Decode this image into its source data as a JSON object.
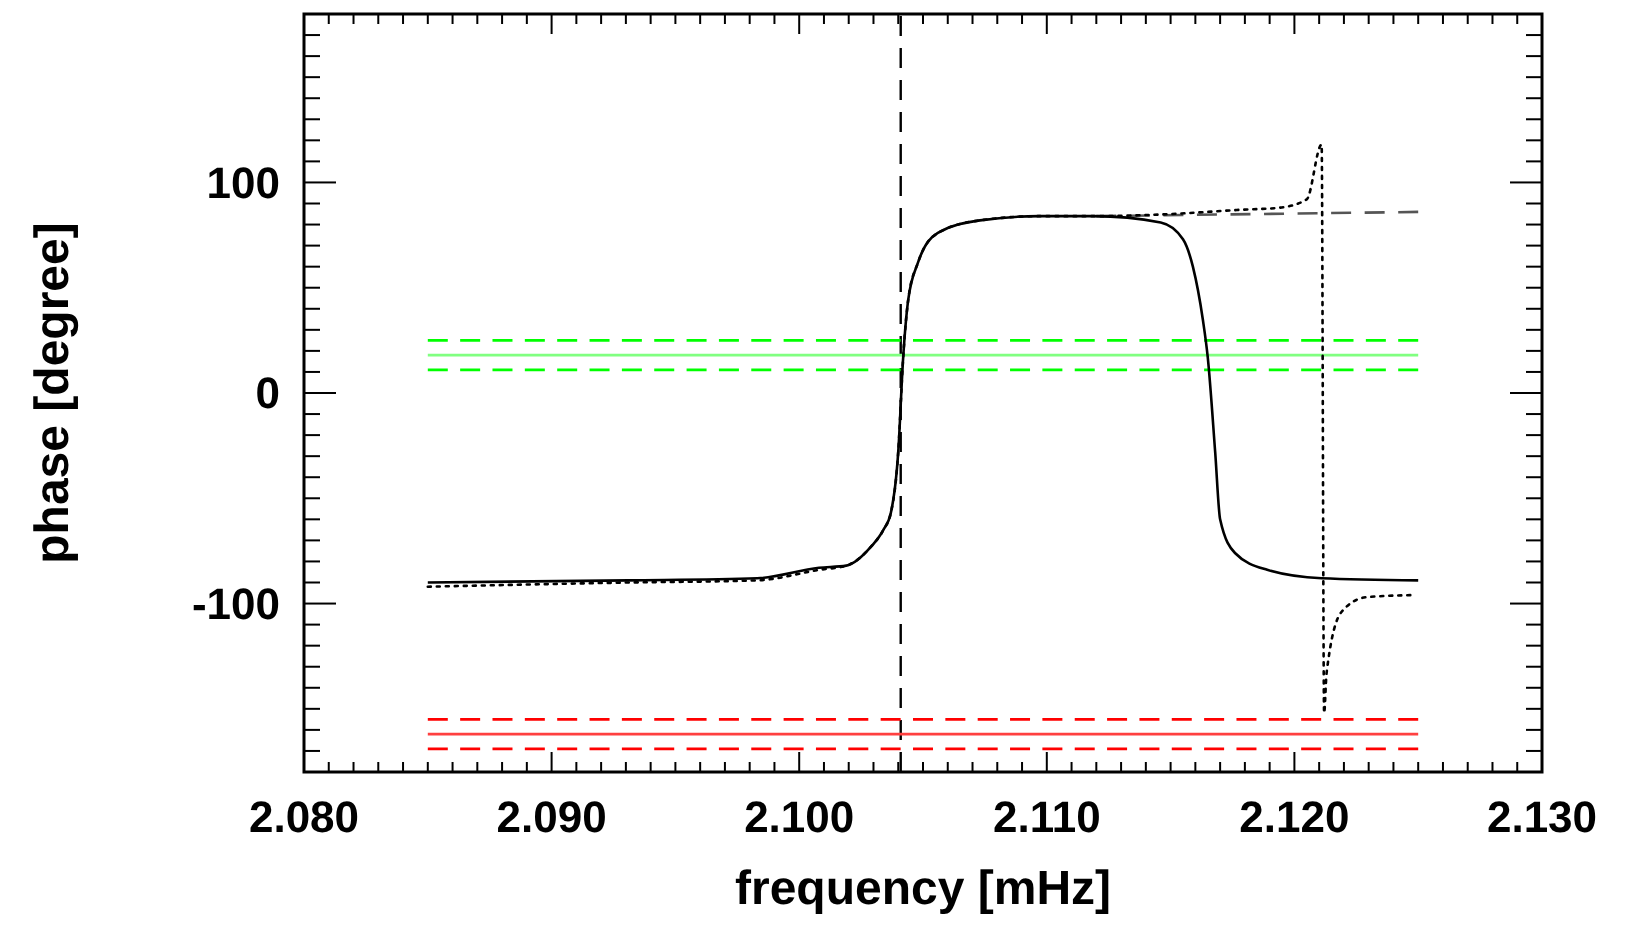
{
  "chart_data": {
    "type": "line",
    "xlabel": "frequency [mHz]",
    "ylabel": "phase [degree]",
    "xlim": [
      2.08,
      2.13
    ],
    "ylim": [
      -180,
      180
    ],
    "xticks": [
      {
        "value": 2.08,
        "label": "2.080"
      },
      {
        "value": 2.081,
        "label": null
      },
      {
        "value": 2.082,
        "label": null
      },
      {
        "value": 2.083,
        "label": null
      },
      {
        "value": 2.084,
        "label": null
      },
      {
        "value": 2.085,
        "label": null
      },
      {
        "value": 2.086,
        "label": null
      },
      {
        "value": 2.087,
        "label": null
      },
      {
        "value": 2.088,
        "label": null
      },
      {
        "value": 2.089,
        "label": null
      },
      {
        "value": 2.09,
        "label": "2.090"
      },
      {
        "value": 2.091,
        "label": null
      },
      {
        "value": 2.092,
        "label": null
      },
      {
        "value": 2.093,
        "label": null
      },
      {
        "value": 2.094,
        "label": null
      },
      {
        "value": 2.095,
        "label": null
      },
      {
        "value": 2.096,
        "label": null
      },
      {
        "value": 2.097,
        "label": null
      },
      {
        "value": 2.098,
        "label": null
      },
      {
        "value": 2.099,
        "label": null
      },
      {
        "value": 2.1,
        "label": "2.100"
      },
      {
        "value": 2.101,
        "label": null
      },
      {
        "value": 2.102,
        "label": null
      },
      {
        "value": 2.103,
        "label": null
      },
      {
        "value": 2.104,
        "label": null
      },
      {
        "value": 2.105,
        "label": null
      },
      {
        "value": 2.106,
        "label": null
      },
      {
        "value": 2.107,
        "label": null
      },
      {
        "value": 2.108,
        "label": null
      },
      {
        "value": 2.109,
        "label": null
      },
      {
        "value": 2.11,
        "label": "2.110"
      },
      {
        "value": 2.111,
        "label": null
      },
      {
        "value": 2.112,
        "label": null
      },
      {
        "value": 2.113,
        "label": null
      },
      {
        "value": 2.114,
        "label": null
      },
      {
        "value": 2.115,
        "label": null
      },
      {
        "value": 2.116,
        "label": null
      },
      {
        "value": 2.117,
        "label": null
      },
      {
        "value": 2.118,
        "label": null
      },
      {
        "value": 2.119,
        "label": null
      },
      {
        "value": 2.12,
        "label": "2.120"
      },
      {
        "value": 2.121,
        "label": null
      },
      {
        "value": 2.122,
        "label": null
      },
      {
        "value": 2.123,
        "label": null
      },
      {
        "value": 2.124,
        "label": null
      },
      {
        "value": 2.125,
        "label": null
      },
      {
        "value": 2.126,
        "label": null
      },
      {
        "value": 2.127,
        "label": null
      },
      {
        "value": 2.128,
        "label": null
      },
      {
        "value": 2.129,
        "label": null
      },
      {
        "value": 2.13,
        "label": "2.130"
      }
    ],
    "yticks": [
      {
        "value": -180,
        "label": null
      },
      {
        "value": -170,
        "label": null
      },
      {
        "value": -160,
        "label": null
      },
      {
        "value": -150,
        "label": null
      },
      {
        "value": -140,
        "label": null
      },
      {
        "value": -130,
        "label": null
      },
      {
        "value": -120,
        "label": null
      },
      {
        "value": -110,
        "label": null
      },
      -100,
      {
        "value": -90,
        "label": null
      },
      {
        "value": -80,
        "label": null
      },
      {
        "value": -70,
        "label": null
      },
      {
        "value": -60,
        "label": null
      },
      {
        "value": -50,
        "label": null
      },
      {
        "value": -40,
        "label": null
      },
      {
        "value": -30,
        "label": null
      },
      {
        "value": -20,
        "label": null
      },
      {
        "value": -10,
        "label": null
      },
      0,
      {
        "value": 10,
        "label": null
      },
      {
        "value": 20,
        "label": null
      },
      {
        "value": 30,
        "label": null
      },
      {
        "value": 40,
        "label": null
      },
      {
        "value": 50,
        "label": null
      },
      {
        "value": 60,
        "label": null
      },
      {
        "value": 70,
        "label": null
      },
      {
        "value": 80,
        "label": null
      },
      {
        "value": 90,
        "label": null
      },
      100,
      {
        "value": 110,
        "label": null
      },
      {
        "value": 120,
        "label": null
      },
      {
        "value": 130,
        "label": null
      },
      {
        "value": 140,
        "label": null
      },
      {
        "value": 150,
        "label": null
      },
      {
        "value": 160,
        "label": null
      },
      {
        "value": 170,
        "label": null
      },
      {
        "value": 180,
        "label": null
      }
    ],
    "series": [
      {
        "color": "#80ff80",
        "line_style": "solid",
        "x": [
          2.085,
          2.125
        ],
        "values": [
          18,
          18
        ]
      },
      {
        "color": "#00ff00",
        "line_style": "dashed",
        "x": [
          2.085,
          2.125
        ],
        "values": [
          25,
          25
        ]
      },
      {
        "color": "#00ff00",
        "line_style": "dashed",
        "x": [
          2.085,
          2.125
        ],
        "values": [
          11,
          11
        ]
      },
      {
        "color": "#ff4040",
        "line_style": "solid",
        "x": [
          2.085,
          2.125
        ],
        "values": [
          -162,
          -162
        ]
      },
      {
        "color": "#ff0000",
        "line_style": "dashed",
        "x": [
          2.085,
          2.125
        ],
        "values": [
          -155,
          -155
        ]
      },
      {
        "color": "#ff0000",
        "line_style": "dashed",
        "x": [
          2.085,
          2.125
        ],
        "values": [
          -169,
          -169
        ]
      },
      {
        "color": "#555555",
        "line_style": "dashed",
        "x": [
          2.112,
          2.125
        ],
        "values": [
          84,
          86
        ]
      },
      {
        "color": "#000000",
        "line_style": "dotted",
        "x": [
          2.085,
          2.0931,
          2.0983,
          2.1008,
          2.1019,
          2.1029,
          2.1034,
          2.1037,
          2.104,
          2.1042,
          2.1044,
          2.1048,
          2.1056,
          2.1073,
          2.1097,
          2.1119,
          2.115,
          2.1178,
          2.1194,
          2.1205,
          2.1211,
          2.1212,
          2.1213,
          2.1219,
          2.1229,
          2.1247
        ],
        "values": [
          -92,
          -90,
          -89,
          -84,
          -82,
          -73,
          -65,
          -57,
          -28,
          17,
          44,
          62,
          76,
          82,
          84,
          84,
          85,
          87,
          88,
          92,
          118,
          -152,
          -133,
          -104,
          -97,
          -96
        ]
      },
      {
        "color": "#000000",
        "line_style": "solid",
        "x": [
          2.085,
          2.0931,
          2.0983,
          2.1008,
          2.1019,
          2.1029,
          2.1034,
          2.1037,
          2.104,
          2.1042,
          2.1044,
          2.1048,
          2.1056,
          2.1073,
          2.1097,
          2.1119,
          2.1146,
          2.1155,
          2.1159,
          2.1163,
          2.1165,
          2.1168,
          2.117,
          2.1176,
          2.1189,
          2.1211,
          2.125
        ],
        "values": [
          -90,
          -89,
          -88,
          -83,
          -82,
          -73,
          -65,
          -57,
          -28,
          17,
          44,
          62,
          76,
          82,
          84,
          84,
          81,
          73,
          60,
          35,
          17,
          -28,
          -60,
          -76,
          -84,
          -88,
          -89
        ]
      }
    ],
    "ref_lines": [
      {
        "axis": "x",
        "value": 2.1041,
        "color": "#000000",
        "line_style": "dashed"
      }
    ],
    "grid": false
  }
}
